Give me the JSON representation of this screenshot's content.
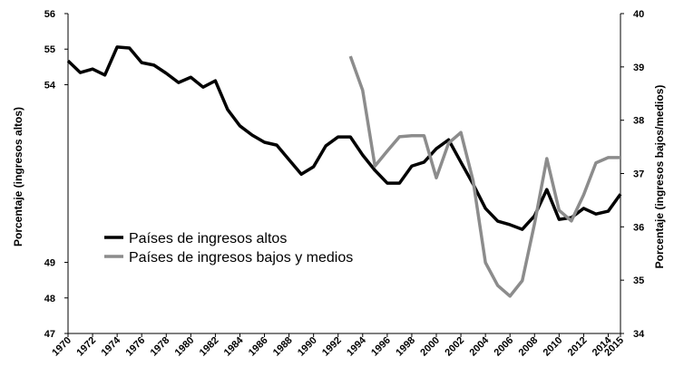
{
  "chart_data": {
    "type": "line",
    "ylabel": "Porcentaje (ingresos altos)",
    "y2label": "Porcentaje (ingresos bajos/medios)",
    "x": [
      1970,
      1971,
      1972,
      1973,
      1974,
      1975,
      1976,
      1977,
      1978,
      1979,
      1980,
      1981,
      1982,
      1983,
      1984,
      1985,
      1986,
      1987,
      1988,
      1989,
      1990,
      1991,
      1992,
      1993,
      1994,
      1995,
      1996,
      1997,
      1998,
      1999,
      2000,
      2001,
      2002,
      2003,
      2004,
      2005,
      2006,
      2007,
      2008,
      2009,
      2010,
      2011,
      2012,
      2013,
      2014,
      2015
    ],
    "xlim": [
      1970,
      2015
    ],
    "xticks": [
      1970,
      1972,
      1974,
      1976,
      1978,
      1980,
      1982,
      1984,
      1986,
      1988,
      1990,
      1992,
      1994,
      1996,
      1998,
      2000,
      2002,
      2004,
      2006,
      2008,
      2010,
      2012,
      2014,
      2015
    ],
    "ylim": [
      47,
      56
    ],
    "yticks": [
      47,
      48,
      49,
      54,
      55,
      56
    ],
    "y2lim": [
      34,
      40
    ],
    "y2ticks": [
      34,
      35,
      36,
      37,
      38,
      39,
      40
    ],
    "series": [
      {
        "name": "Países de ingresos altos",
        "color": "#000000",
        "values": [
          54.67,
          54.34,
          54.44,
          54.27,
          55.06,
          55.03,
          54.62,
          54.55,
          54.32,
          54.06,
          54.21,
          53.93,
          54.11,
          53.3,
          52.84,
          52.58,
          52.38,
          52.3,
          51.89,
          51.48,
          51.69,
          52.28,
          52.53,
          52.53,
          52.02,
          51.59,
          51.23,
          51.23,
          51.71,
          51.82,
          52.2,
          52.45,
          51.82,
          51.2,
          50.52,
          50.16,
          50.06,
          49.93,
          50.31,
          51.05,
          50.21,
          50.26,
          50.52,
          50.36,
          50.44,
          50.92
        ]
      },
      {
        "name": "Países de ingresos bajos y medios",
        "color": "#8c8c8c",
        "axis": "y2",
        "values": [
          null,
          null,
          null,
          null,
          null,
          null,
          null,
          null,
          null,
          null,
          null,
          null,
          null,
          null,
          null,
          null,
          null,
          null,
          null,
          null,
          null,
          null,
          null,
          39.2,
          38.56,
          37.14,
          37.42,
          37.69,
          37.71,
          37.71,
          36.92,
          37.57,
          37.77,
          36.86,
          35.33,
          34.9,
          34.7,
          34.99,
          36.06,
          37.28,
          36.31,
          36.11,
          36.6,
          37.2,
          37.3,
          37.3
        ]
      }
    ]
  }
}
